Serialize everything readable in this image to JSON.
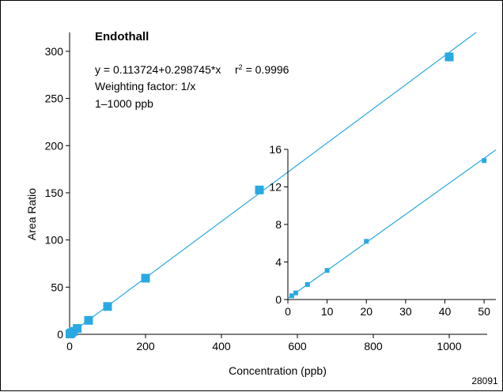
{
  "chart_data": [
    {
      "type": "scatter",
      "title": "Endothall",
      "xlabel": "Concentration (ppb)",
      "ylabel": "Area Ratio",
      "xlim": [
        0,
        1100
      ],
      "ylim": [
        0,
        320
      ],
      "xticks": [
        0,
        200,
        400,
        600,
        800,
        1000
      ],
      "yticks": [
        0,
        50,
        100,
        150,
        200,
        250,
        300
      ],
      "annotations": {
        "equation": "y = 0.113724+0.298745*x",
        "r2_prefix": "r",
        "r2_sup": "2",
        "r2_value": " = 0.9996",
        "weighting": "Weighting factor: 1/x",
        "range": "1–1000 ppb"
      },
      "fit": {
        "intercept": 0.113724,
        "slope": 0.298745
      },
      "points": [
        {
          "x": 1,
          "y": 0.4
        },
        {
          "x": 2,
          "y": 0.7
        },
        {
          "x": 5,
          "y": 1.6
        },
        {
          "x": 10,
          "y": 3.1
        },
        {
          "x": 20,
          "y": 6.2
        },
        {
          "x": 50,
          "y": 14.8
        },
        {
          "x": 100,
          "y": 29.5
        },
        {
          "x": 200,
          "y": 59.5
        },
        {
          "x": 500,
          "y": 153
        },
        {
          "x": 1000,
          "y": 294
        }
      ],
      "color": "#29a9e1",
      "grid": false
    },
    {
      "type": "scatter",
      "title": "",
      "xlabel": "",
      "ylabel": "",
      "xlim": [
        0,
        53
      ],
      "ylim": [
        0,
        16
      ],
      "xticks": [
        0,
        10,
        20,
        30,
        40,
        50
      ],
      "yticks": [
        0,
        4,
        8,
        12,
        16
      ],
      "fit": {
        "intercept": 0.113724,
        "slope": 0.298745
      },
      "points": [
        {
          "x": 1,
          "y": 0.4
        },
        {
          "x": 2,
          "y": 0.7
        },
        {
          "x": 5,
          "y": 1.6
        },
        {
          "x": 10,
          "y": 3.1
        },
        {
          "x": 20,
          "y": 6.2
        },
        {
          "x": 50,
          "y": 14.8
        }
      ],
      "color": "#29a9e1",
      "grid": false
    }
  ],
  "figure_id": "28091"
}
